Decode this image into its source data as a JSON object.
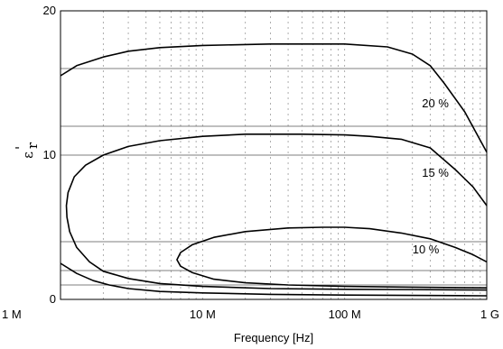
{
  "chart_data": {
    "type": "line",
    "title": "",
    "xlabel": "Frequency [Hz]",
    "ylabel_main": "ε",
    "ylabel_sup": "'",
    "ylabel_sub": "r",
    "x_scale": "log",
    "xlim": [
      1000000,
      1000000000
    ],
    "ylim": [
      0,
      20
    ],
    "x_ticks": [
      {
        "value": 1000000,
        "label": "1 M"
      },
      {
        "value": 10000000,
        "label": "10 M"
      },
      {
        "value": 100000000,
        "label": "100 M"
      },
      {
        "value": 1000000000,
        "label": "1 G"
      }
    ],
    "y_ticks": [
      {
        "value": 0,
        "label": "0"
      },
      {
        "value": 10,
        "label": "10"
      },
      {
        "value": 20,
        "label": "20"
      }
    ],
    "h_gridlines": [
      1,
      2,
      4,
      10,
      12,
      16
    ],
    "grid": true,
    "annotations": [
      {
        "text": "20 %",
        "x": 350000000,
        "y": 13.3
      },
      {
        "text": "15 %",
        "x": 350000000,
        "y": 8.5
      },
      {
        "text": "10 %",
        "x": 300000000,
        "y": 3.2
      }
    ],
    "series": [
      {
        "points": [
          [
            1000000,
            15.5
          ],
          [
            1300000,
            16.2
          ],
          [
            2000000,
            16.8
          ],
          [
            3000000,
            17.2
          ],
          [
            5000000,
            17.45
          ],
          [
            10000000,
            17.6
          ],
          [
            30000000,
            17.7
          ],
          [
            100000000,
            17.7
          ],
          [
            200000000,
            17.5
          ],
          [
            300000000,
            17.0
          ],
          [
            400000000,
            16.2
          ],
          [
            500000000,
            15.0
          ],
          [
            700000000,
            13.0
          ],
          [
            1000000000,
            10.2
          ]
        ]
      },
      {
        "points": [
          [
            1000000000,
            6.5
          ],
          [
            800000000,
            7.8
          ],
          [
            600000000,
            9.0
          ],
          [
            400000000,
            10.5
          ],
          [
            250000000,
            11.1
          ],
          [
            150000000,
            11.3
          ],
          [
            100000000,
            11.4
          ],
          [
            50000000,
            11.45
          ],
          [
            20000000,
            11.45
          ],
          [
            10000000,
            11.3
          ],
          [
            5000000,
            11.0
          ],
          [
            3000000,
            10.6
          ],
          [
            2000000,
            10.0
          ],
          [
            1500000,
            9.3
          ],
          [
            1250000,
            8.5
          ],
          [
            1130000,
            7.4
          ],
          [
            1100000,
            6.5
          ],
          [
            1110000,
            5.7
          ],
          [
            1160000,
            4.7
          ],
          [
            1300000,
            3.6
          ],
          [
            1600000,
            2.6
          ],
          [
            2000000,
            1.95
          ],
          [
            3000000,
            1.45
          ],
          [
            5000000,
            1.1
          ],
          [
            10000000,
            0.9
          ],
          [
            30000000,
            0.75
          ],
          [
            100000000,
            0.7
          ],
          [
            300000000,
            0.68
          ],
          [
            1000000000,
            0.65
          ]
        ]
      },
      {
        "points": [
          [
            1000000000,
            2.6
          ],
          [
            800000000,
            3.1
          ],
          [
            600000000,
            3.6
          ],
          [
            400000000,
            4.2
          ],
          [
            250000000,
            4.6
          ],
          [
            150000000,
            4.9
          ],
          [
            100000000,
            5.0
          ],
          [
            70000000,
            5.0
          ],
          [
            40000000,
            4.95
          ],
          [
            20000000,
            4.7
          ],
          [
            12000000,
            4.3
          ],
          [
            8500000,
            3.8
          ],
          [
            7000000,
            3.25
          ],
          [
            6600000,
            2.75
          ],
          [
            7000000,
            2.3
          ],
          [
            8500000,
            1.85
          ],
          [
            12000000,
            1.4
          ],
          [
            20000000,
            1.15
          ],
          [
            40000000,
            1.0
          ],
          [
            100000000,
            0.9
          ],
          [
            300000000,
            0.85
          ],
          [
            1000000000,
            0.8
          ]
        ]
      },
      {
        "points": [
          [
            1000000,
            2.5
          ],
          [
            1300000,
            1.8
          ],
          [
            1700000,
            1.3
          ],
          [
            2200000,
            1.0
          ],
          [
            3000000,
            0.75
          ],
          [
            5000000,
            0.55
          ],
          [
            10000000,
            0.45
          ],
          [
            30000000,
            0.35
          ],
          [
            100000000,
            0.3
          ],
          [
            1000000000,
            0.25
          ]
        ]
      }
    ]
  }
}
